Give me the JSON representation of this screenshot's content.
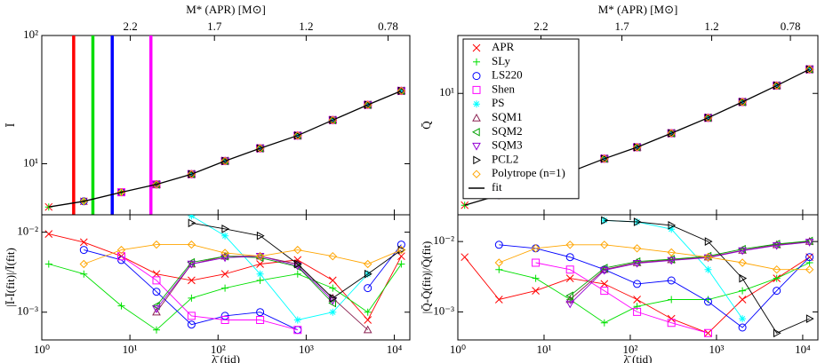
{
  "chart_data": [
    {
      "type": "line",
      "log_x": true,
      "log_y": true,
      "ylabel": "Ī",
      "top_axis": {
        "label": "M* (APR) [M⊙]",
        "ticks": [
          2.2,
          1.7,
          1.2,
          0.78
        ],
        "positions": [
          10.1,
          91,
          1000,
          8500
        ]
      },
      "vlines": [
        {
          "x": 2.3,
          "color": "#ff0000"
        },
        {
          "x": 3.8,
          "color": "#00dd00"
        },
        {
          "x": 6.3,
          "color": "#0000ff"
        },
        {
          "x": 17.3,
          "color": "#ff00ff"
        }
      ],
      "xlim": [
        1,
        15000
      ],
      "xticks": [
        {
          "value": 1,
          "label": "10⁰"
        },
        {
          "value": 10,
          "label": "10¹"
        },
        {
          "value": 100,
          "label": "10²"
        },
        {
          "value": 1000,
          "label": "10³"
        },
        {
          "value": 10000,
          "label": "10⁴"
        }
      ],
      "ylim": [
        4,
        100
      ],
      "yticks": [
        {
          "value": 10,
          "label": "10¹"
        },
        {
          "value": 100,
          "label": "10²"
        }
      ],
      "x": [
        1.2,
        3,
        8,
        20,
        50,
        120,
        300,
        800,
        2000,
        5000,
        12000
      ],
      "series": [
        {
          "color": "#ff0000",
          "marker": "x",
          "values": [
            4.6,
            5.1,
            6.0,
            6.9,
            8.3,
            10.5,
            13.2,
            16.6,
            21.9,
            28.8,
            37
          ]
        },
        {
          "color": "#00e000",
          "marker": "plus",
          "values": [
            4.6,
            5.1,
            6.0,
            6.9,
            8.3,
            10.5,
            13.2,
            16.6,
            21.9,
            28.8,
            37
          ]
        },
        {
          "color": "#0000ff",
          "marker": "circle",
          "values": [
            null,
            5.1,
            6.0,
            6.9,
            8.3,
            10.5,
            13.2,
            16.6,
            21.9,
            28.8,
            37
          ]
        },
        {
          "color": "#ff00ff",
          "marker": "square",
          "values": [
            null,
            null,
            6.0,
            6.9,
            8.3,
            10.5,
            13.2,
            16.6,
            21.9,
            28.8,
            37
          ]
        },
        {
          "color": "#00ffff",
          "marker": "star",
          "values": [
            null,
            null,
            null,
            null,
            8.3,
            10.5,
            13.2,
            16.6,
            21.9,
            28.8,
            37
          ]
        },
        {
          "color": "#8b2252",
          "marker": "tri-up",
          "values": [
            null,
            null,
            null,
            6.9,
            8.3,
            10.5,
            13.2,
            16.6,
            21.9,
            28.8,
            37
          ]
        },
        {
          "color": "#00a000",
          "marker": "tri-left",
          "values": [
            null,
            null,
            null,
            6.9,
            8.3,
            10.5,
            13.2,
            16.6,
            21.9,
            28.8,
            37
          ]
        },
        {
          "color": "#9400d3",
          "marker": "tri-down",
          "values": [
            null,
            null,
            null,
            6.9,
            8.3,
            10.5,
            13.2,
            16.6,
            21.9,
            28.8,
            37
          ]
        },
        {
          "color": "#000000",
          "marker": "tri-right",
          "values": [
            null,
            null,
            null,
            null,
            8.3,
            10.5,
            13.2,
            16.6,
            21.9,
            28.8,
            37
          ]
        },
        {
          "color": "#ffa500",
          "marker": "diamond",
          "values": [
            null,
            5.1,
            6.0,
            6.9,
            8.3,
            10.5,
            13.2,
            16.6,
            21.9,
            28.8,
            37
          ]
        },
        {
          "color": "#000000",
          "marker": "none",
          "line": true,
          "values": [
            4.6,
            5.1,
            6.0,
            6.9,
            8.3,
            10.5,
            13.2,
            16.6,
            21.9,
            28.8,
            37
          ]
        }
      ]
    },
    {
      "type": "line",
      "log_x": true,
      "log_y": true,
      "lines": true,
      "ylabel": "|Ī-Ī(fit)|/Ī(fit)",
      "xlabel": "λ̄ (tid)",
      "xlim": [
        1,
        15000
      ],
      "xticks": [
        {
          "value": 1,
          "label": "10⁰"
        },
        {
          "value": 10,
          "label": "10¹"
        },
        {
          "value": 100,
          "label": "10²"
        },
        {
          "value": 1000,
          "label": "10³"
        },
        {
          "value": 10000,
          "label": "10⁴"
        }
      ],
      "ylim": [
        0.00045,
        0.0165
      ],
      "yticks": [
        {
          "value": 0.001,
          "label": "10⁻³"
        },
        {
          "value": 0.01,
          "label": "10⁻²"
        }
      ],
      "x": [
        1.2,
        3,
        8,
        20,
        50,
        120,
        300,
        800,
        2000,
        5000,
        12000
      ],
      "series": [
        {
          "color": "#ff0000",
          "marker": "x",
          "values": [
            0.0095,
            0.0075,
            0.005,
            0.003,
            0.0025,
            0.003,
            0.004,
            0.0045,
            0.0025,
            0.0008,
            0.005
          ]
        },
        {
          "color": "#00e000",
          "marker": "plus",
          "values": [
            0.004,
            0.003,
            0.0012,
            0.0006,
            0.0015,
            0.002,
            0.0025,
            0.003,
            0.002,
            0.001,
            0.004
          ]
        },
        {
          "color": "#0000ff",
          "marker": "circle",
          "values": [
            null,
            0.006,
            0.0045,
            0.0018,
            0.0007,
            0.0009,
            0.001,
            0.0006,
            null,
            0.002,
            0.007
          ]
        },
        {
          "color": "#ff00ff",
          "marker": "square",
          "values": [
            null,
            null,
            0.005,
            0.0025,
            0.0009,
            0.0008,
            0.0008,
            0.0006,
            null,
            null,
            null
          ]
        },
        {
          "color": "#00ffff",
          "marker": "star",
          "values": [
            null,
            null,
            null,
            null,
            0.016,
            0.009,
            0.003,
            0.0008,
            0.001,
            0.003,
            null
          ]
        },
        {
          "color": "#8b2252",
          "marker": "tri-up",
          "values": [
            null,
            null,
            null,
            0.001,
            0.004,
            0.005,
            0.005,
            0.004,
            0.0015,
            0.0006,
            null
          ]
        },
        {
          "color": "#00a000",
          "marker": "tri-left",
          "values": [
            null,
            null,
            null,
            0.0012,
            0.0042,
            0.005,
            0.0048,
            0.0037,
            0.0013,
            null,
            null
          ]
        },
        {
          "color": "#9400d3",
          "marker": "tri-down",
          "values": [
            null,
            null,
            null,
            0.0011,
            0.004,
            0.0048,
            0.005,
            0.0038,
            0.0014,
            null,
            null
          ]
        },
        {
          "color": "#000000",
          "marker": "tri-right",
          "values": [
            null,
            null,
            null,
            null,
            0.013,
            0.011,
            0.009,
            0.004,
            0.0015,
            0.003,
            0.006
          ]
        },
        {
          "color": "#ffa500",
          "marker": "diamond",
          "values": [
            null,
            0.004,
            0.006,
            0.007,
            0.007,
            0.0055,
            0.005,
            0.006,
            0.005,
            0.004,
            0.006
          ]
        }
      ]
    },
    {
      "type": "line",
      "log_x": true,
      "log_y": true,
      "ylabel": "Q̄",
      "top_axis": {
        "label": "M* (APR) [M⊙]",
        "ticks": [
          2.2,
          1.7,
          1.2,
          0.78
        ],
        "positions": [
          9.2,
          80,
          880,
          7200
        ]
      },
      "legend": "upper left",
      "xlim": [
        1,
        15000
      ],
      "xticks": [
        {
          "value": 1,
          "label": "10⁰"
        },
        {
          "value": 10,
          "label": "10¹"
        },
        {
          "value": 100,
          "label": "10²"
        },
        {
          "value": 1000,
          "label": "10³"
        },
        {
          "value": 10000,
          "label": "10⁴"
        }
      ],
      "ylim": [
        1,
        30
      ],
      "yticks": [
        {
          "value": 10,
          "label": "10¹"
        }
      ],
      "x": [
        1.2,
        3,
        8,
        20,
        50,
        120,
        300,
        800,
        2000,
        5000,
        12000
      ],
      "series": [
        {
          "name": "APR",
          "color": "#ff0000",
          "marker": "x",
          "values": [
            1.2,
            1.45,
            1.8,
            2.25,
            2.9,
            3.6,
            4.7,
            6.3,
            8.5,
            11.6,
            15.8
          ]
        },
        {
          "name": "SLy",
          "color": "#00e000",
          "marker": "plus",
          "values": [
            1.2,
            1.45,
            1.8,
            2.25,
            2.9,
            3.6,
            4.7,
            6.3,
            8.5,
            11.6,
            15.8
          ]
        },
        {
          "name": "LS220",
          "color": "#0000ff",
          "marker": "circle",
          "values": [
            null,
            1.45,
            1.8,
            2.25,
            2.9,
            3.6,
            4.7,
            6.3,
            8.5,
            11.6,
            15.8
          ]
        },
        {
          "name": "Shen",
          "color": "#ff00ff",
          "marker": "square",
          "values": [
            null,
            null,
            1.8,
            2.25,
            2.9,
            3.6,
            4.7,
            6.3,
            8.5,
            11.6,
            15.8
          ]
        },
        {
          "name": "PS",
          "color": "#00ffff",
          "marker": "star",
          "values": [
            null,
            null,
            null,
            null,
            2.9,
            3.6,
            4.7,
            6.3,
            8.5,
            11.6,
            15.8
          ]
        },
        {
          "name": "SQM1",
          "color": "#8b2252",
          "marker": "tri-up",
          "values": [
            null,
            null,
            null,
            2.25,
            2.9,
            3.6,
            4.7,
            6.3,
            8.5,
            11.6,
            15.8
          ]
        },
        {
          "name": "SQM2",
          "color": "#00a000",
          "marker": "tri-left",
          "values": [
            null,
            null,
            null,
            2.25,
            2.9,
            3.6,
            4.7,
            6.3,
            8.5,
            11.6,
            15.8
          ]
        },
        {
          "name": "SQM3",
          "color": "#9400d3",
          "marker": "tri-down",
          "values": [
            null,
            null,
            null,
            2.25,
            2.9,
            3.6,
            4.7,
            6.3,
            8.5,
            11.6,
            15.8
          ]
        },
        {
          "name": "PCL2",
          "color": "#000000",
          "marker": "tri-right",
          "values": [
            null,
            null,
            null,
            null,
            2.9,
            3.6,
            4.7,
            6.3,
            8.5,
            11.6,
            15.8
          ]
        },
        {
          "name": "Polytrope (n=1)",
          "color": "#ffa500",
          "marker": "diamond",
          "values": [
            null,
            1.45,
            1.8,
            2.25,
            2.9,
            3.6,
            4.7,
            6.3,
            8.5,
            11.6,
            15.8
          ]
        },
        {
          "name": "fit",
          "color": "#000000",
          "marker": "none",
          "line": true,
          "values": [
            1.2,
            1.45,
            1.8,
            2.25,
            2.9,
            3.6,
            4.7,
            6.3,
            8.5,
            11.6,
            15.8
          ]
        }
      ]
    },
    {
      "type": "line",
      "log_x": true,
      "log_y": true,
      "lines": true,
      "ylabel": "|Q̄-Q̄(fit)|/Q̄(fit)",
      "xlabel": "λ̄ (tid)",
      "xlim": [
        1,
        15000
      ],
      "xticks": [
        {
          "value": 1,
          "label": "10⁰"
        },
        {
          "value": 10,
          "label": "10¹"
        },
        {
          "value": 100,
          "label": "10²"
        },
        {
          "value": 1000,
          "label": "10³"
        },
        {
          "value": 10000,
          "label": "10⁴"
        }
      ],
      "ylim": [
        0.0004,
        0.024
      ],
      "yticks": [
        {
          "value": 0.001,
          "label": "10⁻³"
        },
        {
          "value": 0.01,
          "label": "10⁻²"
        }
      ],
      "x": [
        1.2,
        3,
        8,
        20,
        50,
        120,
        300,
        800,
        2000,
        5000,
        12000
      ],
      "series": [
        {
          "color": "#ff0000",
          "marker": "x",
          "values": [
            0.006,
            0.0015,
            0.002,
            0.003,
            0.0025,
            0.0015,
            0.0008,
            0.0005,
            0.0015,
            0.003,
            0.006
          ]
        },
        {
          "color": "#00e000",
          "marker": "plus",
          "values": [
            null,
            0.004,
            0.003,
            0.0015,
            0.0007,
            0.0012,
            0.0015,
            0.0015,
            0.002,
            0.003,
            0.005
          ]
        },
        {
          "color": "#0000ff",
          "marker": "circle",
          "values": [
            null,
            0.009,
            0.008,
            0.006,
            0.004,
            0.0025,
            0.0028,
            0.0014,
            0.0006,
            0.002,
            0.006
          ]
        },
        {
          "color": "#ff00ff",
          "marker": "square",
          "values": [
            null,
            null,
            0.005,
            0.004,
            0.002,
            0.001,
            0.0007,
            0.0005,
            null,
            null,
            null
          ]
        },
        {
          "color": "#00ffff",
          "marker": "star",
          "values": [
            null,
            null,
            null,
            null,
            0.02,
            0.019,
            0.015,
            0.004,
            0.0008,
            null,
            null
          ]
        },
        {
          "color": "#8b2252",
          "marker": "tri-up",
          "values": [
            null,
            null,
            null,
            0.0015,
            0.004,
            0.005,
            0.0055,
            0.006,
            0.0075,
            0.009,
            0.01
          ]
        },
        {
          "color": "#00a000",
          "marker": "tri-left",
          "values": [
            null,
            null,
            null,
            0.0017,
            0.0042,
            0.0052,
            0.0056,
            0.0062,
            0.0078,
            0.0092,
            0.0102
          ]
        },
        {
          "color": "#9400d3",
          "marker": "tri-down",
          "values": [
            null,
            null,
            null,
            0.0013,
            0.0039,
            0.0049,
            0.0054,
            0.0059,
            0.0074,
            0.0088,
            0.0098
          ]
        },
        {
          "color": "#000000",
          "marker": "tri-right",
          "values": [
            null,
            null,
            null,
            null,
            0.02,
            0.019,
            0.017,
            0.01,
            0.003,
            0.0005,
            0.0008
          ]
        },
        {
          "color": "#ffa500",
          "marker": "diamond",
          "values": [
            null,
            0.005,
            0.008,
            0.009,
            0.009,
            0.008,
            0.007,
            0.006,
            0.005,
            0.004,
            0.004
          ]
        }
      ]
    }
  ]
}
